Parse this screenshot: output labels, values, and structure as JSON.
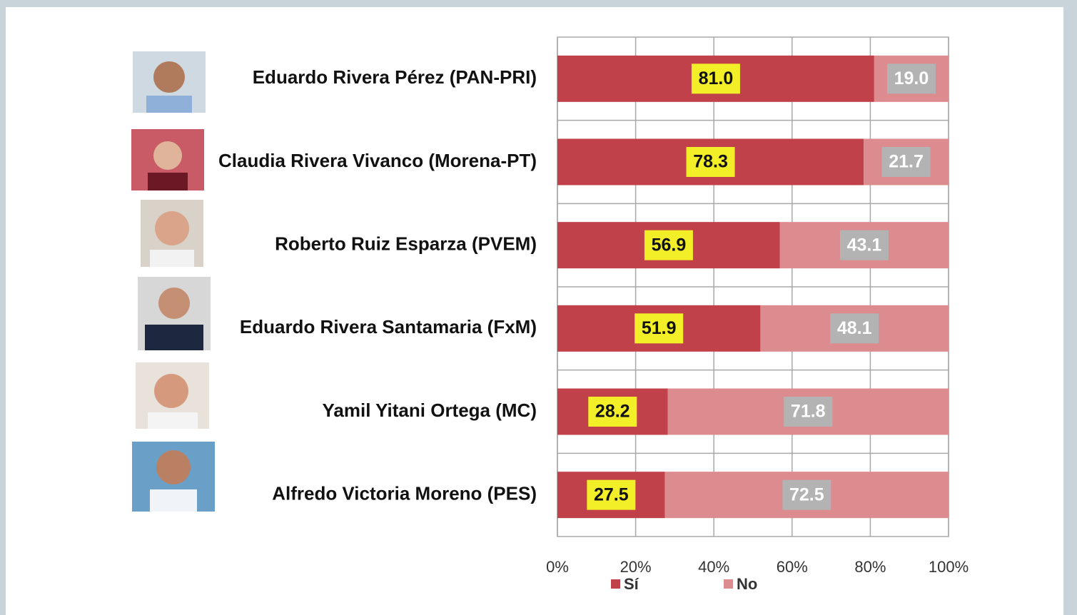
{
  "chart_data": {
    "type": "stacked-barh",
    "categories": [
      "Eduardo Rivera Pérez (PAN-PRI)",
      "Claudia Rivera Vivanco (Morena-PT)",
      "Roberto Ruiz Esparza (PVEM)",
      "Eduardo Rivera Santamaria (FxM)",
      "Yamil Yitani Ortega (MC)",
      "Alfredo Victoria Moreno (PES)"
    ],
    "series": [
      {
        "name": "Sí",
        "color": "#c0414a",
        "values": [
          81.0,
          78.3,
          56.9,
          51.9,
          28.2,
          27.5
        ],
        "value_labels": [
          "81.0",
          "78.3",
          "56.9",
          "51.9",
          "28.2",
          "27.5"
        ]
      },
      {
        "name": "No",
        "color": "#dc8b8e",
        "values": [
          19.0,
          21.7,
          43.1,
          48.1,
          71.8,
          72.5
        ],
        "value_labels": [
          "19.0",
          "21.7",
          "43.1",
          "48.1",
          "71.8",
          "72.5"
        ]
      }
    ],
    "xlim": [
      0,
      100
    ],
    "xticks": [
      {
        "value": 0,
        "label": "0%"
      },
      {
        "value": 20,
        "label": "20%"
      },
      {
        "value": 40,
        "label": "40%"
      },
      {
        "value": 60,
        "label": "60%"
      },
      {
        "value": 80,
        "label": "80%"
      },
      {
        "value": 100,
        "label": "100%"
      }
    ],
    "grid": true
  }
}
